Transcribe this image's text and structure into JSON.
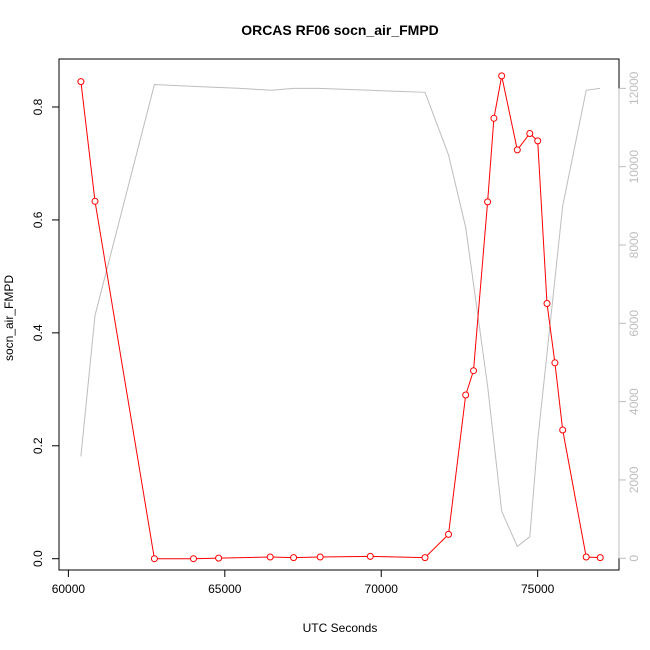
{
  "chart_data": {
    "type": "line",
    "title": "ORCAS RF06 socn_air_FMPD",
    "xlabel": "UTC Seconds",
    "ylabel": "socn_air_FMPD",
    "xlim": [
      59700,
      77600
    ],
    "ylim": [
      -0.02,
      0.885
    ],
    "y2lim": [
      -300,
      12750
    ],
    "x_ticks": [
      60000,
      65000,
      70000,
      75000
    ],
    "y_ticks": [
      0.0,
      0.2,
      0.4,
      0.6,
      0.8
    ],
    "y_tick_labels": [
      "0.0",
      "0.2",
      "0.4",
      "0.6",
      "0.8"
    ],
    "y2_ticks": [
      0,
      2000,
      4000,
      6000,
      8000,
      10000,
      12000
    ],
    "colors": {
      "primary": "#ff0000",
      "secondary": "#bdbdbd"
    },
    "series": [
      {
        "axis": "left",
        "style": "line+points",
        "x": [
          60400,
          60850,
          62750,
          64000,
          64800,
          66450,
          67200,
          68050,
          69650,
          71400,
          72150,
          72700,
          72950,
          73400,
          73600,
          73850,
          74350,
          74750,
          75000,
          75300,
          75550,
          75800,
          76550,
          77000
        ],
        "y": [
          0.845,
          0.633,
          0.0,
          0.0,
          0.001,
          0.003,
          0.002,
          0.003,
          0.004,
          0.002,
          0.043,
          0.29,
          0.333,
          0.632,
          0.78,
          0.855,
          0.724,
          0.753,
          0.74,
          0.452,
          0.347,
          0.228,
          0.003,
          0.002
        ]
      },
      {
        "axis": "right",
        "style": "line",
        "x": [
          60400,
          60850,
          62750,
          64000,
          65500,
          66500,
          67200,
          68000,
          69650,
          71400,
          72150,
          72700,
          73400,
          73850,
          74350,
          74750,
          75000,
          75800,
          76550,
          77000
        ],
        "y": [
          2600,
          6200,
          12100,
          12050,
          12000,
          11950,
          12000,
          12000,
          11950,
          11900,
          10300,
          8450,
          4400,
          1200,
          300,
          550,
          3000,
          9000,
          11950,
          12000
        ]
      }
    ]
  }
}
